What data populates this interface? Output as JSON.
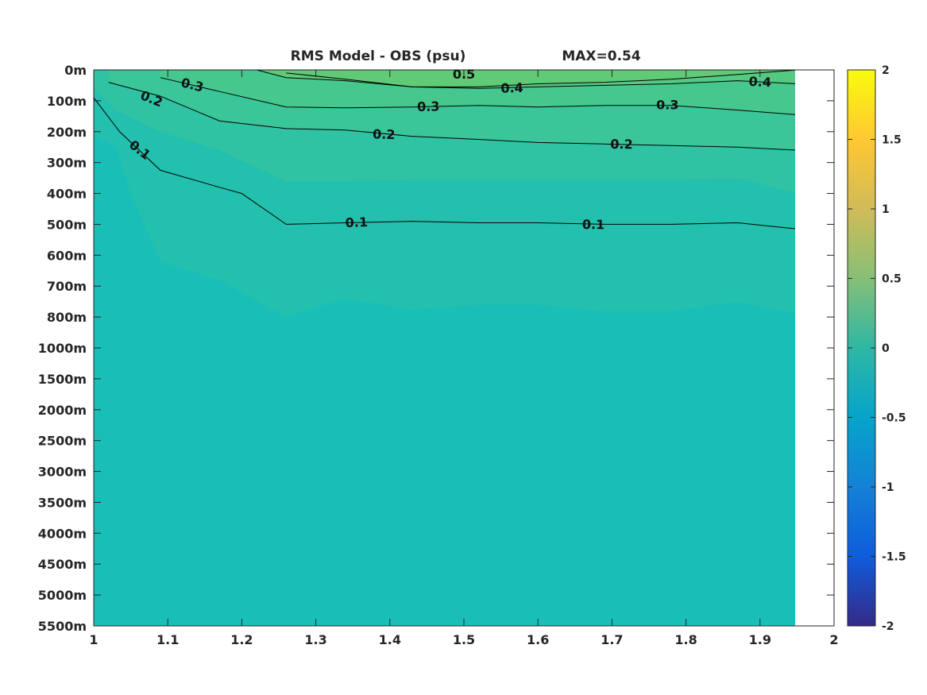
{
  "chart_data": {
    "type": "contour",
    "title": "RMS Model - OBS (psu)",
    "annotation": "MAX=0.54",
    "x": {
      "lim": [
        1,
        2
      ],
      "ticks": [
        1,
        1.1,
        1.2,
        1.3,
        1.4,
        1.5,
        1.6,
        1.7,
        1.8,
        1.9,
        2
      ],
      "tick_labels": [
        "1",
        "1.1",
        "1.2",
        "1.3",
        "1.4",
        "1.5",
        "1.6",
        "1.7",
        "1.8",
        "1.9",
        "2"
      ],
      "data_extent": [
        1,
        1.95
      ]
    },
    "y": {
      "reversed": true,
      "tick_labels": [
        "0m",
        "100m",
        "200m",
        "300m",
        "400m",
        "500m",
        "600m",
        "700m",
        "800m",
        "1000m",
        "1500m",
        "2000m",
        "2500m",
        "3000m",
        "3500m",
        "4000m",
        "4500m",
        "5000m",
        "5500m"
      ]
    },
    "colorbar": {
      "colormap": "parula",
      "lim": [
        -2,
        2
      ],
      "ticks": [
        2,
        1.5,
        1,
        0.5,
        0,
        -0.5,
        -1,
        -1.5,
        -2
      ],
      "tick_labels": [
        "2",
        "1.5",
        "1",
        "0.5",
        "0",
        "-0.5",
        "-1",
        "-1.5",
        "-2"
      ],
      "stops": [
        "#352a87",
        "#0f5cdd",
        "#1481d6",
        "#06a4ca",
        "#2eb7a4",
        "#87bf77",
        "#d1bb59",
        "#fec832",
        "#f9fb0e"
      ]
    },
    "fill_colors": {
      "base": "#19bfb7",
      "band_0_1": "#23c0ad",
      "band_1_2": "#2fc3a3",
      "band_2_3": "#3ac698",
      "band_3_4": "#46c78d",
      "band_4_5": "#53c982",
      "band_5_plus": "#60ca77"
    },
    "contours": [
      {
        "level": 0.1,
        "points": [
          [
            1.0,
            0.9
          ],
          [
            1.035,
            2.0
          ],
          [
            1.09,
            3.25
          ],
          [
            1.17,
            3.8
          ],
          [
            1.2,
            4.0
          ],
          [
            1.26,
            5.0
          ],
          [
            1.34,
            4.95
          ],
          [
            1.43,
            4.9
          ],
          [
            1.52,
            4.95
          ],
          [
            1.6,
            4.95
          ],
          [
            1.69,
            5.0
          ],
          [
            1.78,
            5.0
          ],
          [
            1.87,
            4.95
          ],
          [
            1.95,
            5.15
          ]
        ],
        "labels": [
          {
            "x": 1.062,
            "y": 2.6,
            "text": "0.1",
            "angle": 38
          },
          {
            "x": 1.355,
            "y": 4.95,
            "text": "0.1",
            "angle": -2
          },
          {
            "x": 1.675,
            "y": 5.02,
            "text": "0.1",
            "angle": 1
          }
        ]
      },
      {
        "level": 0.2,
        "points": [
          [
            1.02,
            0.4
          ],
          [
            1.09,
            0.85
          ],
          [
            1.17,
            1.65
          ],
          [
            1.26,
            1.9
          ],
          [
            1.34,
            1.95
          ],
          [
            1.43,
            2.15
          ],
          [
            1.52,
            2.25
          ],
          [
            1.6,
            2.35
          ],
          [
            1.69,
            2.4
          ],
          [
            1.78,
            2.45
          ],
          [
            1.87,
            2.5
          ],
          [
            1.95,
            2.6
          ]
        ],
        "labels": [
          {
            "x": 1.078,
            "y": 0.95,
            "text": "0.2",
            "angle": 22
          },
          {
            "x": 1.392,
            "y": 2.1,
            "text": "0.2",
            "angle": 2
          },
          {
            "x": 1.713,
            "y": 2.42,
            "text": "0.2",
            "angle": 1
          }
        ]
      },
      {
        "level": 0.3,
        "points": [
          [
            1.09,
            0.25
          ],
          [
            1.17,
            0.7
          ],
          [
            1.26,
            1.2
          ],
          [
            1.34,
            1.23
          ],
          [
            1.43,
            1.2
          ],
          [
            1.52,
            1.15
          ],
          [
            1.6,
            1.2
          ],
          [
            1.69,
            1.15
          ],
          [
            1.78,
            1.15
          ],
          [
            1.87,
            1.3
          ],
          [
            1.95,
            1.45
          ]
        ],
        "labels": [
          {
            "x": 1.133,
            "y": 0.5,
            "text": "0.3",
            "angle": 14
          },
          {
            "x": 1.452,
            "y": 1.2,
            "text": "0.3",
            "angle": -1
          },
          {
            "x": 1.775,
            "y": 1.15,
            "text": "0.3",
            "angle": 0
          }
        ]
      },
      {
        "level": 0.4,
        "points": [
          [
            1.26,
            0.1
          ],
          [
            1.34,
            0.3
          ],
          [
            1.43,
            0.55
          ],
          [
            1.52,
            0.6
          ],
          [
            1.6,
            0.55
          ],
          [
            1.69,
            0.5
          ],
          [
            1.78,
            0.45
          ],
          [
            1.87,
            0.35
          ],
          [
            1.95,
            0.45
          ]
        ],
        "labels": [
          {
            "x": 1.565,
            "y": 0.6,
            "text": "0.4",
            "angle": -2
          },
          {
            "x": 1.9,
            "y": 0.4,
            "text": "0.4",
            "angle": 3
          }
        ]
      },
      {
        "level": 0.5,
        "points": [
          [
            1.22,
            0.0
          ],
          [
            1.26,
            0.25
          ],
          [
            1.34,
            0.35
          ],
          [
            1.43,
            0.55
          ],
          [
            1.52,
            0.55
          ],
          [
            1.6,
            0.45
          ],
          [
            1.69,
            0.4
          ],
          [
            1.78,
            0.3
          ],
          [
            1.87,
            0.15
          ],
          [
            1.95,
            0.0
          ]
        ],
        "labels": [
          {
            "x": 1.5,
            "y": 0.15,
            "text": "0.5",
            "angle": 0
          }
        ]
      }
    ]
  }
}
